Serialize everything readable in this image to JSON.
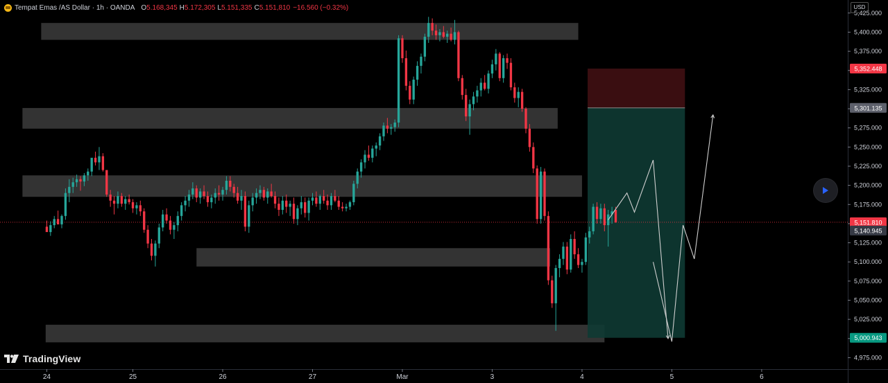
{
  "legend": {
    "title": "Tempat Emas /AS Dollar · 1h · OANDA",
    "open_key": "O",
    "open": "5.168,345",
    "high_key": "H",
    "high": "5.172,305",
    "low_key": "L",
    "low": "5.151,335",
    "close_key": "C",
    "close": "5.151,810",
    "change": "−16.560 (−0.32%)"
  },
  "currency_button": "USD",
  "logo_text": "TradingView",
  "colors": {
    "background": "#000000",
    "up": "#26a69a",
    "down": "#f23645",
    "zone": "#3a3a3a",
    "profit_zone": "#0e3a33",
    "loss_zone": "#3d0f12"
  },
  "chart_data": {
    "type": "candlestick",
    "title": "",
    "price_axis": {
      "ticks": [
        "5,425.000",
        "5,400.000",
        "5,375.000",
        "5,350.000",
        "5,325.000",
        "5,300.000",
        "5,275.000",
        "5,250.000",
        "5,225.000",
        "5,200.000",
        "5,175.000",
        "5,150.000",
        "5,125.000",
        "5,100.000",
        "5,075.000",
        "5,050.000",
        "5,025.000",
        "5,000.000",
        "4,975.000"
      ],
      "tick_values": [
        5425,
        5400,
        5375,
        5350,
        5325,
        5300,
        5275,
        5250,
        5225,
        5200,
        5175,
        5150,
        5125,
        5100,
        5075,
        5050,
        5025,
        5000,
        4975
      ],
      "ylim": [
        4960,
        5442
      ]
    },
    "time_axis": {
      "labels": [
        "24",
        "25",
        "26",
        "27",
        "Mar",
        "3",
        "4",
        "5",
        "6"
      ],
      "label_bars": [
        0,
        23,
        47,
        71,
        95,
        119,
        143,
        167,
        191
      ],
      "bar_range": [
        -12.5,
        214
      ]
    },
    "price_labels": [
      {
        "text": "5,352.448",
        "value": 5352.448,
        "kind": "stop"
      },
      {
        "text": "5,301.135",
        "value": 5301.135,
        "kind": "entry"
      },
      {
        "text": "5,151.810",
        "value": 5151.81,
        "kind": "last"
      },
      {
        "text": "5,140.945",
        "value": 5140.945,
        "kind": "neutral"
      },
      {
        "text": "5,000.943",
        "value": 5000.943,
        "kind": "target"
      }
    ],
    "last_price": 5151.81,
    "zones": [
      {
        "from_bar": -1.5,
        "to_bar": 142,
        "high": 5412,
        "low": 5390
      },
      {
        "from_bar": -6.5,
        "to_bar": 136.5,
        "high": 5301,
        "low": 5274
      },
      {
        "from_bar": -6.5,
        "to_bar": 143,
        "high": 5213,
        "low": 5185
      },
      {
        "from_bar": 40,
        "to_bar": 134.5,
        "high": 5118,
        "low": 5094
      },
      {
        "from_bar": -0.3,
        "to_bar": 149,
        "high": 5018,
        "low": 4995
      }
    ],
    "position": {
      "from_bar": 144.5,
      "to_bar": 170.5,
      "entry": 5301.135,
      "stop": 5352.448,
      "target": 5000.943
    },
    "projection_paths": [
      [
        [
          150,
          5155
        ],
        [
          155,
          5190
        ],
        [
          157,
          5165
        ],
        [
          162,
          5233
        ],
        [
          166,
          5000
        ]
      ],
      [
        [
          162,
          5100
        ],
        [
          167,
          4996
        ],
        [
          170,
          5148
        ],
        [
          173,
          5104
        ],
        [
          178,
          5292
        ]
      ]
    ],
    "candles": [
      [
        5146,
        5154,
        5141,
        5139
      ],
      [
        5139,
        5153,
        5134,
        5148
      ],
      [
        5148,
        5160,
        5144,
        5156
      ],
      [
        5156,
        5167,
        5152,
        5149
      ],
      [
        5149,
        5162,
        5144,
        5160
      ],
      [
        5160,
        5196,
        5155,
        5190
      ],
      [
        5190,
        5208,
        5178,
        5198
      ],
      [
        5198,
        5210,
        5190,
        5204
      ],
      [
        5204,
        5214,
        5198,
        5208
      ],
      [
        5208,
        5212,
        5193,
        5205
      ],
      [
        5205,
        5216,
        5199,
        5213
      ],
      [
        5213,
        5222,
        5206,
        5218
      ],
      [
        5218,
        5233,
        5212,
        5236
      ],
      [
        5236,
        5244,
        5226,
        5230
      ],
      [
        5230,
        5250,
        5220,
        5238
      ],
      [
        5238,
        5242,
        5218,
        5220
      ],
      [
        5220,
        5218,
        5185,
        5188
      ],
      [
        5188,
        5194,
        5172,
        5180
      ],
      [
        5180,
        5186,
        5162,
        5176
      ],
      [
        5176,
        5192,
        5170,
        5186
      ],
      [
        5186,
        5190,
        5172,
        5176
      ],
      [
        5176,
        5186,
        5168,
        5182
      ],
      [
        5182,
        5188,
        5175,
        5178
      ],
      [
        5178,
        5182,
        5164,
        5170
      ],
      [
        5170,
        5178,
        5162,
        5174
      ],
      [
        5174,
        5180,
        5160,
        5166
      ],
      [
        5166,
        5170,
        5138,
        5142
      ],
      [
        5142,
        5148,
        5118,
        5124
      ],
      [
        5124,
        5130,
        5102,
        5108
      ],
      [
        5108,
        5128,
        5094,
        5124
      ],
      [
        5124,
        5150,
        5118,
        5145
      ],
      [
        5145,
        5168,
        5140,
        5162
      ],
      [
        5162,
        5170,
        5150,
        5154
      ],
      [
        5154,
        5160,
        5136,
        5142
      ],
      [
        5142,
        5152,
        5130,
        5148
      ],
      [
        5148,
        5166,
        5140,
        5160
      ],
      [
        5160,
        5178,
        5154,
        5174
      ],
      [
        5174,
        5186,
        5166,
        5180
      ],
      [
        5180,
        5194,
        5172,
        5188
      ],
      [
        5188,
        5204,
        5182,
        5196
      ],
      [
        5196,
        5200,
        5178,
        5184
      ],
      [
        5184,
        5196,
        5176,
        5192
      ],
      [
        5192,
        5200,
        5182,
        5186
      ],
      [
        5186,
        5192,
        5172,
        5178
      ],
      [
        5178,
        5188,
        5170,
        5184
      ],
      [
        5184,
        5196,
        5176,
        5190
      ],
      [
        5190,
        5200,
        5180,
        5188
      ],
      [
        5188,
        5198,
        5180,
        5194
      ],
      [
        5194,
        5212,
        5188,
        5206
      ],
      [
        5206,
        5212,
        5192,
        5198
      ],
      [
        5198,
        5202,
        5184,
        5190
      ],
      [
        5190,
        5198,
        5176,
        5180
      ],
      [
        5180,
        5194,
        5168,
        5186
      ],
      [
        5186,
        5192,
        5140,
        5146
      ],
      [
        5146,
        5180,
        5138,
        5174
      ],
      [
        5174,
        5190,
        5166,
        5184
      ],
      [
        5184,
        5196,
        5176,
        5190
      ],
      [
        5190,
        5200,
        5182,
        5194
      ],
      [
        5194,
        5198,
        5180,
        5184
      ],
      [
        5184,
        5196,
        5176,
        5192
      ],
      [
        5192,
        5202,
        5184,
        5186
      ],
      [
        5186,
        5192,
        5170,
        5176
      ],
      [
        5176,
        5184,
        5160,
        5168
      ],
      [
        5168,
        5186,
        5162,
        5180
      ],
      [
        5180,
        5188,
        5164,
        5172
      ],
      [
        5172,
        5180,
        5160,
        5176
      ],
      [
        5176,
        5184,
        5150,
        5156
      ],
      [
        5156,
        5174,
        5148,
        5170
      ],
      [
        5170,
        5186,
        5162,
        5178
      ],
      [
        5178,
        5184,
        5158,
        5164
      ],
      [
        5164,
        5184,
        5154,
        5180
      ],
      [
        5180,
        5190,
        5174,
        5184
      ],
      [
        5184,
        5192,
        5172,
        5176
      ],
      [
        5176,
        5188,
        5168,
        5186
      ],
      [
        5186,
        5194,
        5176,
        5180
      ],
      [
        5180,
        5188,
        5168,
        5174
      ],
      [
        5174,
        5190,
        5168,
        5186
      ],
      [
        5186,
        5194,
        5178,
        5180
      ],
      [
        5180,
        5186,
        5168,
        5172
      ],
      [
        5172,
        5178,
        5166,
        5170
      ],
      [
        5170,
        5176,
        5166,
        5172
      ],
      [
        5172,
        5180,
        5168,
        5178
      ],
      [
        5178,
        5206,
        5174,
        5202
      ],
      [
        5202,
        5222,
        5196,
        5218
      ],
      [
        5218,
        5234,
        5210,
        5230
      ],
      [
        5230,
        5246,
        5222,
        5240
      ],
      [
        5240,
        5252,
        5232,
        5236
      ],
      [
        5236,
        5252,
        5230,
        5248
      ],
      [
        5248,
        5256,
        5238,
        5252
      ],
      [
        5252,
        5268,
        5246,
        5264
      ],
      [
        5264,
        5282,
        5258,
        5278
      ],
      [
        5278,
        5288,
        5268,
        5274
      ],
      [
        5274,
        5280,
        5266,
        5276
      ],
      [
        5276,
        5286,
        5270,
        5282
      ],
      [
        5282,
        5396,
        5276,
        5392
      ],
      [
        5392,
        5396,
        5360,
        5366
      ],
      [
        5366,
        5376,
        5324,
        5330
      ],
      [
        5330,
        5336,
        5306,
        5312
      ],
      [
        5312,
        5342,
        5306,
        5338
      ],
      [
        5338,
        5362,
        5330,
        5356
      ],
      [
        5356,
        5372,
        5346,
        5368
      ],
      [
        5368,
        5398,
        5362,
        5394
      ],
      [
        5394,
        5420,
        5386,
        5412
      ],
      [
        5412,
        5418,
        5396,
        5402
      ],
      [
        5402,
        5410,
        5390,
        5396
      ],
      [
        5396,
        5404,
        5388,
        5400
      ],
      [
        5400,
        5408,
        5392,
        5394
      ],
      [
        5394,
        5402,
        5386,
        5398
      ],
      [
        5398,
        5406,
        5388,
        5390
      ],
      [
        5390,
        5416,
        5384,
        5400
      ],
      [
        5400,
        5402,
        5336,
        5340
      ],
      [
        5340,
        5344,
        5312,
        5318
      ],
      [
        5318,
        5326,
        5284,
        5290
      ],
      [
        5290,
        5312,
        5266,
        5306
      ],
      [
        5306,
        5322,
        5298,
        5316
      ],
      [
        5316,
        5330,
        5308,
        5324
      ],
      [
        5324,
        5340,
        5316,
        5334
      ],
      [
        5334,
        5344,
        5324,
        5326
      ],
      [
        5326,
        5350,
        5320,
        5346
      ],
      [
        5346,
        5364,
        5340,
        5358
      ],
      [
        5358,
        5378,
        5350,
        5372
      ],
      [
        5372,
        5374,
        5336,
        5340
      ],
      [
        5340,
        5370,
        5334,
        5366
      ],
      [
        5366,
        5372,
        5352,
        5360
      ],
      [
        5360,
        5366,
        5324,
        5328
      ],
      [
        5328,
        5334,
        5308,
        5314
      ],
      [
        5314,
        5328,
        5302,
        5322
      ],
      [
        5322,
        5326,
        5296,
        5300
      ],
      [
        5300,
        5302,
        5268,
        5274
      ],
      [
        5274,
        5280,
        5244,
        5250
      ],
      [
        5250,
        5256,
        5216,
        5222
      ],
      [
        5222,
        5226,
        5150,
        5156
      ],
      [
        5156,
        5224,
        5150,
        5218
      ],
      [
        5218,
        5222,
        5154,
        5160
      ],
      [
        5160,
        5166,
        5070,
        5076
      ],
      [
        5076,
        5082,
        5040,
        5046
      ],
      [
        5046,
        5096,
        5010,
        5092
      ],
      [
        5092,
        5110,
        5080,
        5104
      ],
      [
        5104,
        5126,
        5096,
        5120
      ],
      [
        5120,
        5126,
        5084,
        5090
      ],
      [
        5090,
        5136,
        5086,
        5130
      ],
      [
        5130,
        5140,
        5104,
        5110
      ],
      [
        5110,
        5118,
        5092,
        5096
      ],
      [
        5096,
        5104,
        5086,
        5100
      ],
      [
        5100,
        5138,
        5096,
        5132
      ],
      [
        5132,
        5146,
        5124,
        5140
      ],
      [
        5140,
        5176,
        5136,
        5172
      ],
      [
        5172,
        5178,
        5150,
        5156
      ],
      [
        5156,
        5176,
        5150,
        5170
      ],
      [
        5170,
        5176,
        5140,
        5148
      ],
      [
        5148,
        5168,
        5120,
        5162
      ],
      [
        5162,
        5172,
        5150,
        5166
      ],
      [
        5168,
        5172,
        5151,
        5152
      ]
    ]
  }
}
